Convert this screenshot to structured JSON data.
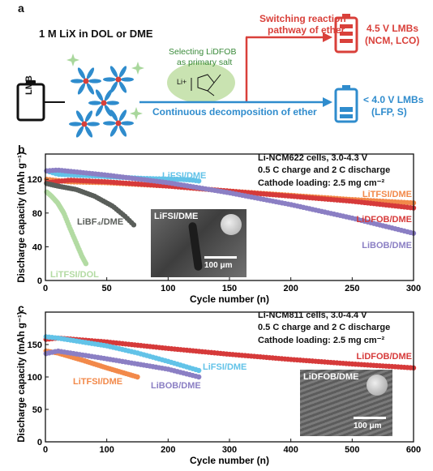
{
  "panel_a": {
    "label": "a",
    "solution_text": "1 M LiX in DOL or DME",
    "battery_label": "LMB",
    "select_line1": "Selecting LiDFOB",
    "select_line2": "as primary salt",
    "li_text": "Li+",
    "switch_line1": "Switching reaction",
    "switch_line2": "pathway of ether",
    "continuous_text": "Continuous decomposition of ether",
    "high_v_line1": "4.5 V LMBs",
    "high_v_line2": "(NCM, LCO)",
    "low_v_line1": "< 4.0 V LMBs",
    "low_v_line2": "(LFP, S)",
    "colors": {
      "red": "#d9403a",
      "blue": "#2f8ccd",
      "green": "#3a8a3a"
    }
  },
  "chart_data": [
    {
      "panel": "b",
      "type": "scatter",
      "xlabel": "Cycle number (n)",
      "ylabel": "Discharge capacity (mAh g⁻¹)",
      "xlim": [
        0,
        300
      ],
      "ylim": [
        0,
        150
      ],
      "xticks": [
        0,
        50,
        100,
        150,
        200,
        250,
        300
      ],
      "yticks": [
        0,
        40,
        80,
        120
      ],
      "info": [
        "Li-NCM622 cells, 3.0-4.3 V",
        "0.5 C charge and 2 C discharge",
        "Cathode loading: 2.5 mg cm⁻²"
      ],
      "inset_label": "LiFSI/DME",
      "scale_bar": "100 μm",
      "series": [
        {
          "name": "LiFSI/DME",
          "color": "#62c3e8",
          "x": [
            1,
            10,
            40,
            80,
            110,
            120,
            125
          ],
          "y": [
            130,
            126,
            124,
            121,
            120,
            119,
            118
          ]
        },
        {
          "name": "LiTFSI/DME",
          "color": "#f2894a",
          "x": [
            1,
            20,
            50,
            100,
            150,
            200,
            250,
            300
          ],
          "y": [
            120,
            117,
            116,
            112,
            106,
            101,
            96,
            92
          ]
        },
        {
          "name": "LiDFOB/DME",
          "color": "#d63a3a",
          "x": [
            1,
            20,
            50,
            100,
            150,
            200,
            250,
            300
          ],
          "y": [
            116,
            119,
            117,
            112,
            106,
            100,
            94,
            86
          ]
        },
        {
          "name": "LiBOB/DME",
          "color": "#8b7fc4",
          "x": [
            1,
            10,
            50,
            100,
            150,
            200,
            250,
            300
          ],
          "y": [
            130,
            131,
            125,
            116,
            104,
            90,
            74,
            56
          ]
        },
        {
          "name": "LiBF₄/DME",
          "color": "#5a5e5a",
          "x": [
            1,
            10,
            25,
            40,
            55,
            65,
            72
          ],
          "y": [
            115,
            112,
            108,
            100,
            88,
            76,
            66
          ]
        },
        {
          "name": "LiTFSI/DOL",
          "color": "#b3dba3",
          "x": [
            1,
            5,
            10,
            15,
            20,
            25,
            30,
            33
          ],
          "y": [
            105,
            100,
            92,
            80,
            62,
            45,
            28,
            20
          ]
        }
      ]
    },
    {
      "panel": "c",
      "type": "scatter",
      "xlabel": "Cycle number (n)",
      "ylabel": "Discharge capacity (mAh g⁻¹)",
      "xlim": [
        0,
        600
      ],
      "ylim": [
        0,
        200
      ],
      "xticks": [
        0,
        100,
        200,
        300,
        400,
        500,
        600
      ],
      "yticks": [
        0,
        50,
        100,
        150
      ],
      "info": [
        "Li-NCM811 cells, 3.0-4.4 V",
        "0.5 C charge and 2 C discharge",
        "Cathode loading: 2.5 mg cm⁻²"
      ],
      "inset_label": "LiDFOB/DME",
      "scale_bar": "100 μm",
      "series": [
        {
          "name": "LiDFOB/DME",
          "color": "#d63a3a",
          "x": [
            1,
            20,
            100,
            200,
            300,
            400,
            500,
            600
          ],
          "y": [
            158,
            160,
            154,
            144,
            135,
            127,
            120,
            114
          ]
        },
        {
          "name": "LiFSI/DME",
          "color": "#62c3e8",
          "x": [
            1,
            20,
            100,
            150,
            200,
            250
          ],
          "y": [
            162,
            160,
            148,
            137,
            124,
            110
          ]
        },
        {
          "name": "LiTFSI/DME",
          "color": "#f2894a",
          "x": [
            1,
            20,
            60,
            100,
            150
          ],
          "y": [
            140,
            137,
            126,
            114,
            100
          ]
        },
        {
          "name": "LiBOB/DME",
          "color": "#8b7fc4",
          "x": [
            1,
            20,
            100,
            200,
            250
          ],
          "y": [
            136,
            140,
            128,
            112,
            100
          ]
        }
      ]
    }
  ]
}
